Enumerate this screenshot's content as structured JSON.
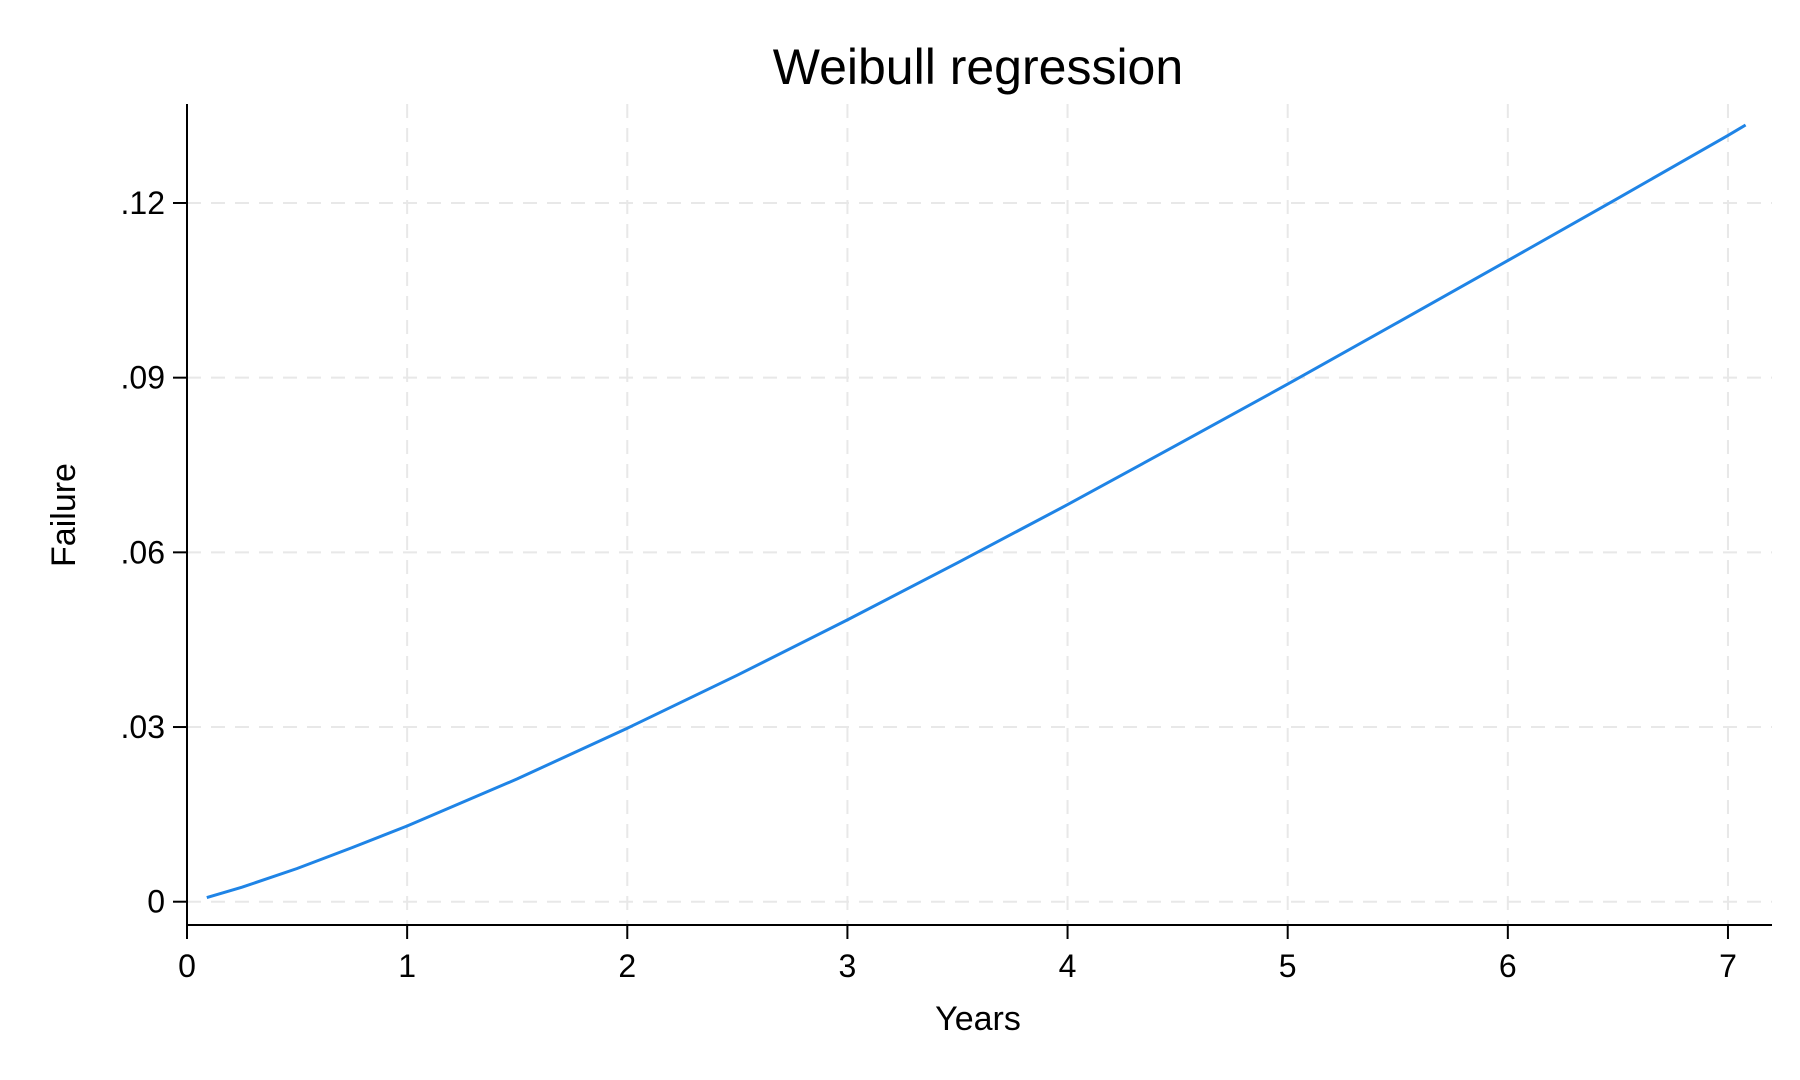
{
  "chart_data": {
    "type": "line",
    "title": "Weibull regression",
    "xlabel": "Years",
    "ylabel": "Failure",
    "xlim": [
      0,
      7.2
    ],
    "ylim": [
      -0.004,
      0.137
    ],
    "xticks": [
      0,
      1,
      2,
      3,
      4,
      5,
      6,
      7
    ],
    "xtick_labels": [
      "0",
      "1",
      "2",
      "3",
      "4",
      "5",
      "6",
      "7"
    ],
    "yticks": [
      0,
      0.03,
      0.06,
      0.09,
      0.12
    ],
    "ytick_labels": [
      "0",
      ".03",
      ".06",
      ".09",
      ".12"
    ],
    "grid": true,
    "line_color": "#1f84e6",
    "series": [
      {
        "name": "Failure",
        "x": [
          0.09,
          0.25,
          0.5,
          0.75,
          1.0,
          1.5,
          2.0,
          2.5,
          3.0,
          3.5,
          4.0,
          4.5,
          5.0,
          5.5,
          6.0,
          6.5,
          7.0,
          7.08
        ],
        "y": [
          0.0007,
          0.0025,
          0.0057,
          0.0093,
          0.013,
          0.0211,
          0.0298,
          0.0389,
          0.0484,
          0.0582,
          0.0682,
          0.0785,
          0.0889,
          0.0995,
          0.1101,
          0.1208,
          0.1316,
          0.1334
        ]
      }
    ]
  }
}
